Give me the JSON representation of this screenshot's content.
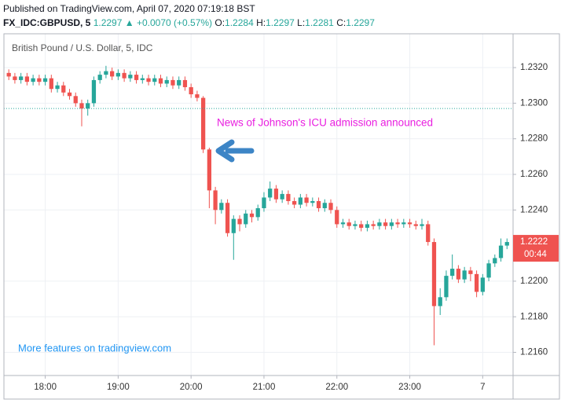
{
  "header": {
    "published": "Published on TradingView.com, April 07, 2020 07:19:18 BST",
    "symbol": "FX_IDC:GBPUSD, 5",
    "price": "1.2297",
    "change": "▲ +0.0070 (+0.57%)",
    "ohlc": [
      {
        "label": "O:",
        "value": "1.2284"
      },
      {
        "label": "H:",
        "value": "1.2297"
      },
      {
        "label": "L:",
        "value": "1.2281"
      },
      {
        "label": "C:",
        "value": "1.2297"
      }
    ]
  },
  "chart_data": {
    "type": "candlestick",
    "title": "British Pound / U.S. Dollar, 5, IDC",
    "x": [
      1050,
      1055,
      1060,
      1065,
      1070,
      1075,
      1080,
      1085,
      1090,
      1095,
      1100,
      1105,
      1110,
      1115,
      1120,
      1125,
      1130,
      1135,
      1140,
      1145,
      1150,
      1155,
      1160,
      1165,
      1170,
      1175,
      1180,
      1185,
      1190,
      1195,
      1200,
      1205,
      1210,
      1215,
      1220,
      1225,
      1230,
      1235,
      1240,
      1245,
      1250,
      1255,
      1260,
      1265,
      1270,
      1275,
      1280,
      1285,
      1290,
      1295,
      1300,
      1305,
      1310,
      1315,
      1320,
      1325,
      1330,
      1335,
      1340,
      1345,
      1350,
      1355,
      1360,
      1365,
      1370,
      1375,
      1380,
      1385,
      1390,
      1395,
      1400,
      1405,
      1410,
      1415,
      1420,
      1425,
      1430,
      1435,
      1440,
      1445,
      1450,
      1455,
      1460
    ],
    "open": [
      1.2317,
      1.2315,
      1.2313,
      1.2315,
      1.2312,
      1.2314,
      1.2312,
      1.2314,
      1.2308,
      1.231,
      1.2306,
      1.2304,
      1.23,
      1.2297,
      1.23,
      1.2313,
      1.2316,
      1.2318,
      1.2315,
      1.2317,
      1.2314,
      1.2316,
      1.2313,
      1.2314,
      1.2312,
      1.2314,
      1.2311,
      1.2313,
      1.231,
      1.2313,
      1.2309,
      1.2305,
      1.2303,
      1.2274,
      1.2251,
      1.224,
      1.2244,
      1.2227,
      1.2235,
      1.2232,
      1.2238,
      1.2236,
      1.2241,
      1.2247,
      1.2252,
      1.2246,
      1.2249,
      1.2245,
      1.2243,
      1.2247,
      1.2244,
      1.2245,
      1.2241,
      1.2244,
      1.224,
      1.2232,
      1.2233,
      1.2231,
      1.2232,
      1.223,
      1.2232,
      1.2231,
      1.2233,
      1.2231,
      1.2233,
      1.2232,
      1.2233,
      1.2232,
      1.2231,
      1.2232,
      1.2222,
      1.2186,
      1.2191,
      1.2203,
      1.2207,
      1.2201,
      1.2206,
      1.2204,
      1.2194,
      1.2202,
      1.221,
      1.2213,
      1.222
    ],
    "high": [
      1.2319,
      1.2317,
      1.2317,
      1.2317,
      1.2316,
      1.2316,
      1.2316,
      1.2316,
      1.2312,
      1.2312,
      1.2308,
      1.2306,
      1.2302,
      1.2302,
      1.2315,
      1.2318,
      1.2321,
      1.232,
      1.2319,
      1.2319,
      1.2318,
      1.2318,
      1.2316,
      1.2316,
      1.2316,
      1.2316,
      1.2315,
      1.2315,
      1.2315,
      1.2315,
      1.2311,
      1.2307,
      1.2304,
      1.2275,
      1.2253,
      1.2246,
      1.2246,
      1.2237,
      1.2237,
      1.224,
      1.224,
      1.2243,
      1.225,
      1.2256,
      1.2254,
      1.2251,
      1.2251,
      1.2247,
      1.2249,
      1.2249,
      1.2247,
      1.2247,
      1.2246,
      1.2246,
      1.2242,
      1.2235,
      1.2235,
      1.2234,
      1.2234,
      1.2234,
      1.2234,
      1.2235,
      1.2235,
      1.2235,
      1.2235,
      1.2235,
      1.2235,
      1.2234,
      1.2235,
      1.2234,
      1.2224,
      1.2196,
      1.2206,
      1.2215,
      1.2209,
      1.2208,
      1.2208,
      1.2206,
      1.2204,
      1.2212,
      1.2215,
      1.2224,
      1.2224
    ],
    "low": [
      1.2313,
      1.2311,
      1.2311,
      1.231,
      1.231,
      1.231,
      1.231,
      1.2306,
      1.2306,
      1.2304,
      1.2302,
      1.2298,
      1.2287,
      1.2293,
      1.2298,
      1.2311,
      1.2314,
      1.2313,
      1.2313,
      1.2312,
      1.2312,
      1.2311,
      1.2311,
      1.231,
      1.231,
      1.2309,
      1.2309,
      1.2308,
      1.2308,
      1.2307,
      1.2303,
      1.2301,
      1.2272,
      1.2241,
      1.2232,
      1.2238,
      1.2225,
      1.2212,
      1.2228,
      1.223,
      1.2233,
      1.2234,
      1.2239,
      1.2245,
      1.2244,
      1.2244,
      1.2243,
      1.2241,
      1.2241,
      1.2242,
      1.2242,
      1.2239,
      1.2239,
      1.2238,
      1.223,
      1.223,
      1.2229,
      1.2229,
      1.2228,
      1.2228,
      1.2229,
      1.2229,
      1.2229,
      1.2229,
      1.223,
      1.223,
      1.223,
      1.2229,
      1.2229,
      1.222,
      1.2164,
      1.2181,
      1.2189,
      1.2201,
      1.2199,
      1.2199,
      1.22,
      1.2191,
      1.2192,
      1.22,
      1.2208,
      1.2211,
      1.2218
    ],
    "close": [
      1.2315,
      1.2313,
      1.2315,
      1.2312,
      1.2314,
      1.2312,
      1.2314,
      1.2308,
      1.231,
      1.2306,
      1.2304,
      1.23,
      1.2297,
      1.23,
      1.2313,
      1.2316,
      1.2318,
      1.2315,
      1.2317,
      1.2314,
      1.2316,
      1.2313,
      1.2314,
      1.2312,
      1.2314,
      1.2311,
      1.2313,
      1.231,
      1.2313,
      1.2309,
      1.2305,
      1.2303,
      1.2274,
      1.2251,
      1.224,
      1.2244,
      1.2227,
      1.2235,
      1.2232,
      1.2238,
      1.2236,
      1.2241,
      1.2247,
      1.2252,
      1.2246,
      1.2249,
      1.2245,
      1.2243,
      1.2247,
      1.2244,
      1.2245,
      1.2241,
      1.2244,
      1.224,
      1.2232,
      1.2233,
      1.2231,
      1.2232,
      1.223,
      1.2232,
      1.2231,
      1.2233,
      1.2231,
      1.2233,
      1.2232,
      1.2233,
      1.2232,
      1.2231,
      1.2232,
      1.2222,
      1.2186,
      1.2191,
      1.2203,
      1.2207,
      1.2201,
      1.2206,
      1.2204,
      1.2194,
      1.2202,
      1.221,
      1.2213,
      1.222,
      1.2222
    ],
    "up_color": "#26a69a",
    "down_color": "#ef5350",
    "xlim": [
      1046,
      1465
    ],
    "xticks": [
      {
        "value": 1080,
        "label": "18:00"
      },
      {
        "value": 1140,
        "label": "19:00"
      },
      {
        "value": 1200,
        "label": "20:00"
      },
      {
        "value": 1260,
        "label": "21:00"
      },
      {
        "value": 1320,
        "label": "22:00"
      },
      {
        "value": 1380,
        "label": "23:00"
      },
      {
        "value": 1440,
        "label": "7"
      }
    ],
    "ylim": [
      1.2147,
      1.2339
    ],
    "yticks": [
      {
        "value": 1.232,
        "label": "1.2320"
      },
      {
        "value": 1.23,
        "label": "1.2300"
      },
      {
        "value": 1.228,
        "label": "1.2280"
      },
      {
        "value": 1.226,
        "label": "1.2260"
      },
      {
        "value": 1.224,
        "label": "1.2240"
      },
      {
        "value": 1.22,
        "label": "1.2200"
      },
      {
        "value": 1.218,
        "label": "1.2180"
      },
      {
        "value": 1.216,
        "label": "1.2160"
      }
    ],
    "grid": true,
    "price_line": 1.2297,
    "price_line_color": "#26a69a",
    "last_price": 1.2222,
    "countdown": "00:44",
    "annotation": "News of Johnson's ICU admission announced",
    "annotation_color": "#e91ee0",
    "watermark": "More features on tradingview.com"
  }
}
